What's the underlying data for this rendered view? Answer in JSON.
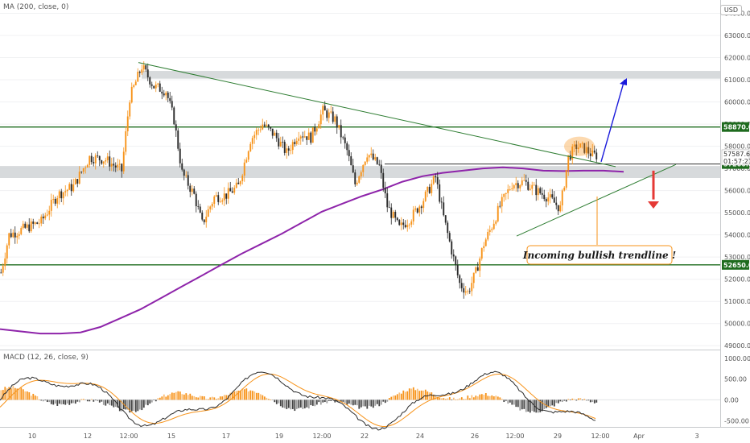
{
  "indicators": {
    "ma_label": "MA (200, close, 0)",
    "macd_label": "MACD (12, 26, close, 9)"
  },
  "currency": "USD",
  "price_axis": {
    "ticks": [
      "64000.00",
      "63000.00",
      "62000.00",
      "61000.00",
      "60000.00",
      "59000.00",
      "58000.00",
      "57000.00",
      "56000.00",
      "55000.00",
      "54000.00",
      "53000.00",
      "52000.00",
      "51000.00",
      "50000.00",
      "49000.00"
    ],
    "tick_values": [
      64000,
      63000,
      62000,
      61000,
      60000,
      59000,
      58000,
      57000,
      56000,
      55000,
      54000,
      53000,
      52000,
      51000,
      50000,
      49000
    ],
    "ylim": [
      48900,
      64600
    ]
  },
  "macd_axis": {
    "ticks": [
      "1000.00",
      "500.00",
      "0.00",
      "-500.00"
    ],
    "tick_values": [
      1000,
      500,
      0,
      -500
    ],
    "ylim": [
      -650,
      1150
    ]
  },
  "time_axis": {
    "labels": [
      "10",
      "12",
      "12:00",
      "15",
      "17",
      "19",
      "12:00",
      "22",
      "24",
      "26",
      "12:00",
      "29",
      "12:00",
      "Apr",
      "3"
    ]
  },
  "levels": [
    {
      "value": 58870,
      "label": "58870.00",
      "color": "#1e6b1e"
    },
    {
      "value": 57200,
      "label": "57200.00",
      "color": "#1e6b1e"
    },
    {
      "value": 52650,
      "label": "52650.00",
      "color": "#1e6b1e"
    }
  ],
  "current_price": {
    "label": "57587.61",
    "timer": "01:57:21",
    "value": 57587.61
  },
  "zones": [
    {
      "from": 61050,
      "to": 61400
    },
    {
      "from": 56750,
      "to": 57000
    }
  ],
  "annotation": {
    "text": "Incoming bullish trendline !"
  },
  "colors": {
    "up": "#f7931a",
    "down": "#2b2b2b",
    "ma": "#8e24aa",
    "trend": "#2e7d32",
    "zone": "#d0d3d6",
    "arrow_up": "#1a1adb",
    "arrow_down": "#e53935",
    "macd_line": "#2b2b2b",
    "signal_line": "#f7931a"
  },
  "chart_data": {
    "type": "line",
    "title": "",
    "series": [
      {
        "name": "MA (200, close, 0)",
        "values": [
          49750,
          49650,
          49550,
          49550,
          49600,
          49850,
          50250,
          50650,
          51150,
          51650,
          52150,
          52650,
          53150,
          53600,
          54050,
          54550,
          55050,
          55400,
          55750,
          56050,
          56400,
          56650,
          56800,
          56900,
          57000,
          57050,
          57000,
          56900,
          56880,
          56900,
          56900,
          56850
        ]
      }
    ],
    "x": [
      0,
      10,
      20,
      30,
      40,
      50,
      60,
      70,
      80,
      90,
      100,
      110,
      120,
      130,
      140,
      150,
      160,
      170,
      180,
      190,
      200,
      210,
      220,
      230,
      240,
      250,
      260,
      270,
      280,
      290,
      300,
      310
    ],
    "xlabel": "",
    "ylabel": "",
    "ylim": [
      48900,
      64600
    ]
  }
}
